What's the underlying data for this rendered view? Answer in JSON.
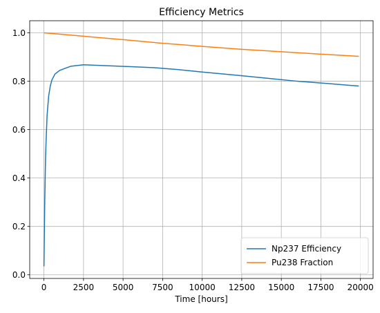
{
  "chart_data": {
    "type": "line",
    "title": "Efficiency Metrics",
    "xlabel": "Time [hours]",
    "ylabel": "",
    "xlim": [
      -900,
      20800
    ],
    "ylim": [
      -0.015,
      1.05
    ],
    "xticks": [
      0,
      2500,
      5000,
      7500,
      10000,
      12500,
      15000,
      17500,
      20000
    ],
    "yticks": [
      0.0,
      0.2,
      0.4,
      0.6,
      0.8,
      1.0
    ],
    "xtick_labels": [
      "0",
      "2500",
      "5000",
      "7500",
      "10000",
      "12500",
      "15000",
      "17500",
      "20000"
    ],
    "ytick_labels": [
      "0.0",
      "0.2",
      "0.4",
      "0.6",
      "0.8",
      "1.0"
    ],
    "grid": true,
    "legend_position": "lower-right",
    "series": [
      {
        "name": "Np237 Efficiency",
        "color": "#1f77b4",
        "x": [
          0,
          50,
          100,
          150,
          200,
          300,
          400,
          500,
          700,
          1000,
          1700,
          2500,
          4000,
          5500,
          7000,
          8500,
          10000,
          12000,
          14000,
          16000,
          18000,
          19900
        ],
        "y": [
          0.035,
          0.3,
          0.48,
          0.58,
          0.66,
          0.74,
          0.78,
          0.805,
          0.83,
          0.845,
          0.862,
          0.868,
          0.864,
          0.86,
          0.856,
          0.848,
          0.838,
          0.826,
          0.813,
          0.8,
          0.79,
          0.78
        ]
      },
      {
        "name": "Pu238 Fraction",
        "color": "#ff7f0e",
        "x": [
          0,
          2500,
          5000,
          7500,
          10000,
          12500,
          15000,
          17500,
          19900
        ],
        "y": [
          1.0,
          0.986,
          0.972,
          0.957,
          0.944,
          0.932,
          0.922,
          0.912,
          0.903
        ]
      }
    ]
  }
}
